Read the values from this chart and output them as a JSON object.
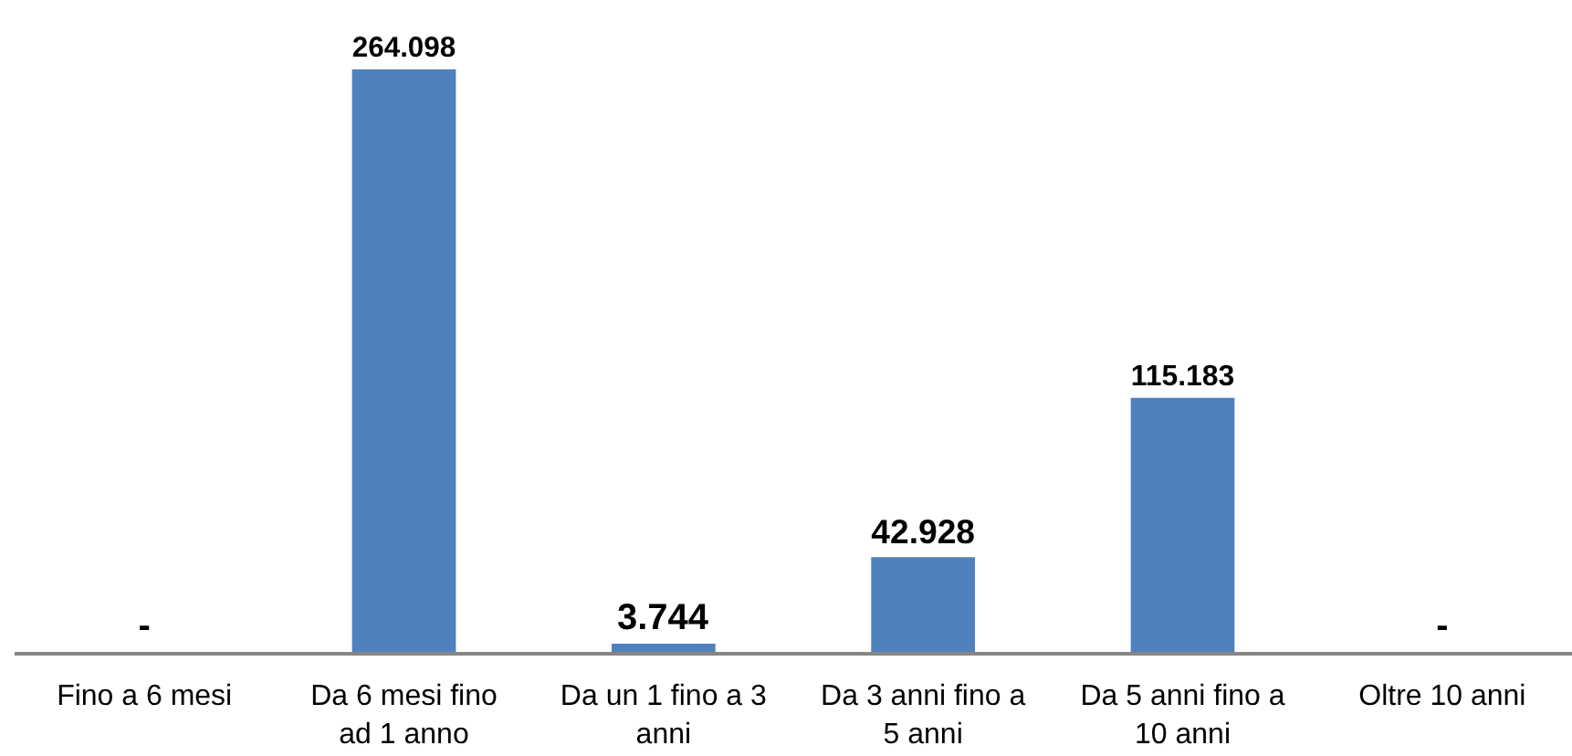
{
  "chart_data": {
    "type": "bar",
    "categories": [
      "Fino a 6 mesi",
      "Da 6 mesi fino ad 1 anno",
      "Da un 1 fino a 3 anni",
      "Da 3 anni fino a 5 anni",
      "Da 5 anni fino a 10 anni",
      "Oltre 10 anni"
    ],
    "values": [
      0,
      264098,
      3744,
      42928,
      115183,
      0
    ],
    "value_labels": [
      "-",
      "264.098",
      "3.744",
      "42.928",
      "115.183",
      "-"
    ],
    "color": "#4f81bd"
  }
}
